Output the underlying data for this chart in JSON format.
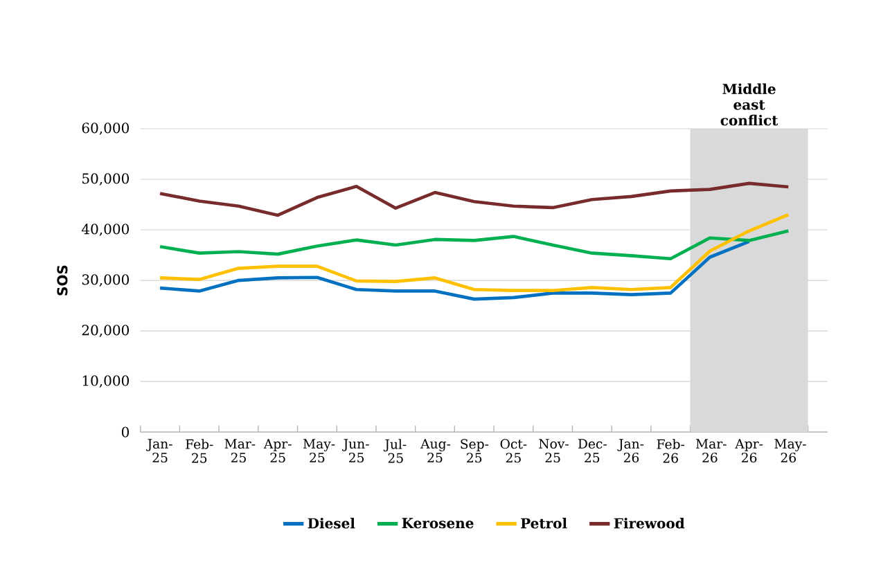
{
  "chart_data": {
    "type": "line",
    "ylabel": "SOS",
    "categories": [
      "Jan-25",
      "Feb-25",
      "Mar-25",
      "Apr-25",
      "May-25",
      "Jun-25",
      "Jul-25",
      "Aug-25",
      "Sep-25",
      "Oct-25",
      "Nov-25",
      "Dec-25",
      "Jan-26",
      "Feb-26",
      "Mar-26",
      "Apr-26",
      "May-26"
    ],
    "series": [
      {
        "name": "Diesel",
        "color": "#0070c0",
        "values": [
          28500,
          27900,
          30000,
          30500,
          30600,
          28200,
          27900,
          27900,
          26300,
          26600,
          27500,
          27500,
          27200,
          27500,
          34600,
          37700,
          null
        ]
      },
      {
        "name": "Kerosene",
        "color": "#00b050",
        "values": [
          36700,
          35400,
          35700,
          35200,
          36800,
          38000,
          37000,
          38100,
          37900,
          38700,
          37000,
          35400,
          34900,
          34300,
          38400,
          37900,
          39800
        ]
      },
      {
        "name": "Petrol",
        "color": "#ffc000",
        "values": [
          30500,
          30200,
          32400,
          32800,
          32800,
          29900,
          29800,
          30500,
          28200,
          28000,
          28000,
          28600,
          28200,
          28600,
          35800,
          39800,
          43000
        ]
      },
      {
        "name": "Firewood",
        "color": "#772b2b",
        "values": [
          47200,
          45700,
          44700,
          42900,
          46400,
          48600,
          44300,
          47400,
          45600,
          44700,
          44400,
          46000,
          46600,
          47700,
          48000,
          49200,
          48500
        ]
      }
    ],
    "ylim": [
      0,
      60000
    ],
    "yticks": [
      {
        "value": 0,
        "label": "0"
      },
      {
        "value": 10000,
        "label": "10,000"
      },
      {
        "value": 20000,
        "label": "20,000"
      },
      {
        "value": 30000,
        "label": "30,000"
      },
      {
        "value": 40000,
        "label": "40,000"
      },
      {
        "value": 50000,
        "label": "50,000"
      },
      {
        "value": 60000,
        "label": "60,000"
      }
    ],
    "grid": "y",
    "legend": "bottom",
    "marker": "none",
    "line_style": "solid",
    "bands": [
      {
        "axis": "x",
        "from": "Mar-26",
        "to": "May-26",
        "label": "Middle east conflict",
        "color": "#d9d9d9"
      }
    ]
  }
}
